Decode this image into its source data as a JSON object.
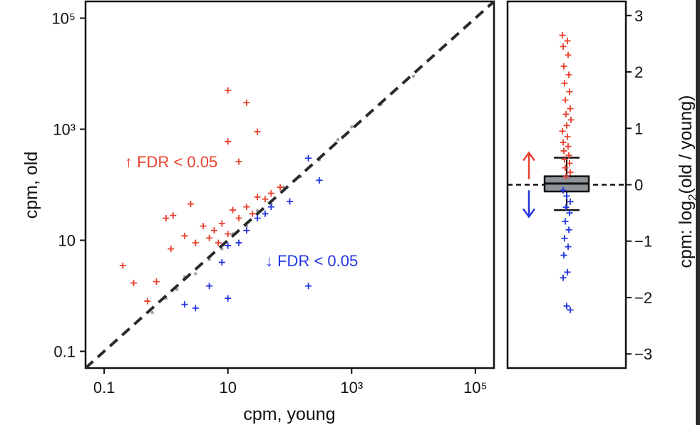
{
  "chart_data": [
    {
      "type": "scatter",
      "xlabel": "cpm, young",
      "ylabel": "cpm, old",
      "x_scale": "log10",
      "y_scale": "log10",
      "xlim": [
        0.05,
        200000
      ],
      "ylim": [
        0.05,
        200000
      ],
      "x_ticks": [
        0.1,
        10,
        1000,
        100000
      ],
      "x_tick_labels": [
        "0.1",
        "10",
        "10³",
        "10⁵"
      ],
      "y_ticks": [
        0.1,
        10,
        1000,
        100000
      ],
      "y_tick_labels": [
        "0.1",
        "10",
        "10³",
        "10⁵"
      ],
      "reference_line": "y = x (dashed)",
      "annotations": [
        {
          "text": "↑ FDR < 0.05",
          "color": "#e8402e"
        },
        {
          "text": "↓ FDR < 0.05",
          "color": "#2235e0"
        }
      ],
      "series": [
        {
          "color": "#a0a0a0",
          "marker": "dot",
          "points": [
            [
              0.6,
              0.5
            ],
            [
              1,
              0.9
            ],
            [
              1.5,
              1.3
            ],
            [
              2,
              2.2
            ],
            [
              3,
              2.5
            ],
            [
              5,
              4.5
            ],
            [
              8,
              7
            ],
            [
              12,
              13
            ],
            [
              20,
              18
            ],
            [
              30,
              34
            ],
            [
              50,
              45
            ],
            [
              80,
              90
            ],
            [
              150,
              140
            ],
            [
              300,
              280
            ],
            [
              600,
              650
            ],
            [
              1000,
              1100
            ],
            [
              3000,
              2800
            ],
            [
              10000,
              9000
            ]
          ]
        },
        {
          "color": "#e8402e",
          "marker": "plus",
          "points": [
            [
              0.2,
              3.5
            ],
            [
              0.3,
              1.7
            ],
            [
              0.7,
              1.8
            ],
            [
              0.5,
              0.8
            ],
            [
              1,
              25
            ],
            [
              1.3,
              28
            ],
            [
              1.2,
              7
            ],
            [
              2,
              12
            ],
            [
              2.5,
              45
            ],
            [
              3,
              9
            ],
            [
              4,
              18
            ],
            [
              5,
              11
            ],
            [
              6,
              15
            ],
            [
              7,
              9
            ],
            [
              8,
              20
            ],
            [
              10,
              13
            ],
            [
              12,
              35
            ],
            [
              15,
              25
            ],
            [
              20,
              40
            ],
            [
              25,
              30
            ],
            [
              30,
              60
            ],
            [
              40,
              55
            ],
            [
              50,
              70
            ],
            [
              70,
              90
            ],
            [
              10,
              5000
            ],
            [
              20,
              3000
            ],
            [
              10,
              600
            ],
            [
              15,
              260
            ],
            [
              30,
              900
            ]
          ]
        },
        {
          "color": "#2235e0",
          "marker": "plus",
          "points": [
            [
              2,
              0.7
            ],
            [
              3,
              0.6
            ],
            [
              5,
              1.5
            ],
            [
              10,
              0.9
            ],
            [
              8,
              4
            ],
            [
              10,
              8
            ],
            [
              15,
              9
            ],
            [
              20,
              15
            ],
            [
              30,
              25
            ],
            [
              40,
              30
            ],
            [
              50,
              40
            ],
            [
              100,
              50
            ],
            [
              200,
              300
            ],
            [
              300,
              120
            ],
            [
              200,
              1.5
            ]
          ]
        }
      ]
    },
    {
      "type": "box",
      "ylabel": "cpm: log₂(old / young)",
      "ylim": [
        -3.25,
        3.25
      ],
      "y_ticks": [
        -3,
        -2,
        -1,
        0,
        1,
        2,
        3
      ],
      "y_tick_labels": [
        "−3",
        "−2",
        "−1",
        "0",
        "1",
        "2",
        "3"
      ],
      "box": {
        "whisker_low": -0.45,
        "q1": -0.12,
        "median": 0.02,
        "q3": 0.15,
        "whisker_high": 0.48
      },
      "reference_line": 0,
      "up_arrow_color": "#e8402e",
      "down_arrow_color": "#2235e0",
      "up_values": [
        2.65,
        2.55,
        2.45,
        2.3,
        2.1,
        1.95,
        1.8,
        1.65,
        1.5,
        1.35,
        1.25,
        1.15,
        1.05,
        0.95,
        0.85,
        0.75,
        0.68,
        0.6,
        0.52,
        0.45,
        0.38,
        0.3,
        0.22,
        0.15
      ],
      "down_values": [
        -0.1,
        -0.2,
        -0.3,
        -0.4,
        -0.5,
        -0.65,
        -0.8,
        -0.95,
        -1.1,
        -1.25,
        -1.55,
        -1.65,
        -2.15,
        -2.22
      ]
    }
  ]
}
